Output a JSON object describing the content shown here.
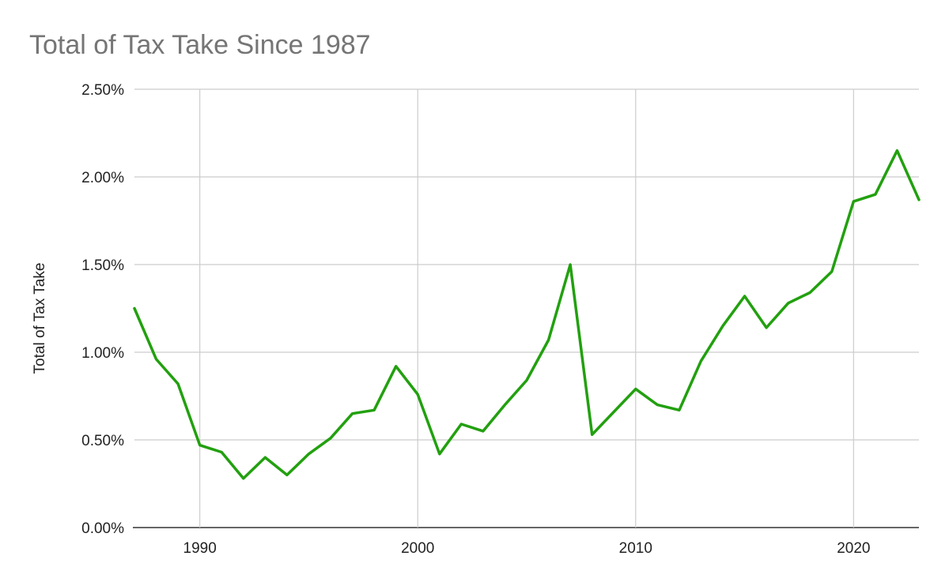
{
  "chart_data": {
    "type": "line",
    "title": "Total of Tax Take Since 1987",
    "xlabel": "",
    "ylabel": "Total of Tax Take",
    "xlim": [
      1987,
      2023
    ],
    "ylim": [
      0,
      0.025
    ],
    "x_ticks": [
      1990,
      2000,
      2010,
      2020
    ],
    "x_tick_labels": [
      "1990",
      "2000",
      "2010",
      "2020"
    ],
    "y_ticks": [
      0,
      0.005,
      0.01,
      0.015,
      0.02,
      0.025
    ],
    "y_tick_labels": [
      "0.00%",
      "0.50%",
      "1.00%",
      "1.50%",
      "2.00%",
      "2.50%"
    ],
    "grid": true,
    "legend": "none",
    "series": [
      {
        "color": "#22a00f",
        "x": [
          1987,
          1988,
          1989,
          1990,
          1991,
          1992,
          1993,
          1994,
          1995,
          1996,
          1997,
          1998,
          1999,
          2000,
          2001,
          2002,
          2003,
          2004,
          2005,
          2006,
          2007,
          2008,
          2009,
          2010,
          2011,
          2012,
          2013,
          2014,
          2015,
          2016,
          2017,
          2018,
          2019,
          2020,
          2021,
          2022,
          2023
        ],
        "values": [
          0.0125,
          0.0096,
          0.0082,
          0.0047,
          0.0043,
          0.0028,
          0.004,
          0.003,
          0.0042,
          0.0051,
          0.0065,
          0.0067,
          0.0092,
          0.0076,
          0.0042,
          0.0059,
          0.0055,
          0.007,
          0.0084,
          0.0107,
          0.015,
          0.0053,
          0.0066,
          0.0079,
          0.007,
          0.0067,
          0.0095,
          0.0115,
          0.0132,
          0.0114,
          0.0128,
          0.0134,
          0.0146,
          0.0186,
          0.019,
          0.0215,
          0.0187
        ]
      }
    ]
  }
}
